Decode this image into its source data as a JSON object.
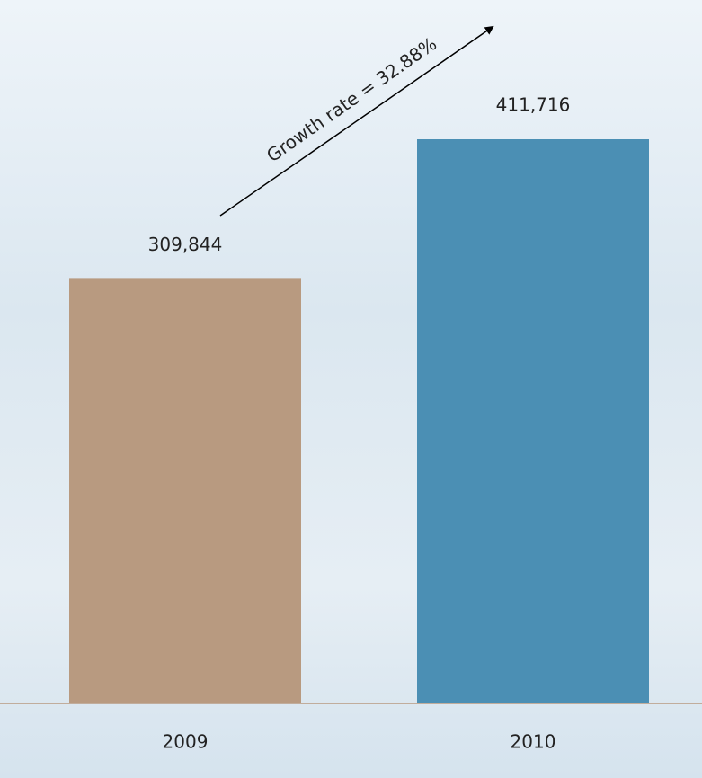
{
  "chart_data": {
    "type": "bar",
    "categories": [
      "2009",
      "2010"
    ],
    "values": [
      309844,
      411716
    ],
    "value_labels": [
      "309,844",
      "411,716"
    ],
    "colors": [
      "#b89a80",
      "#4b8fb4"
    ],
    "annotation": "Growth rate = 32.88%"
  }
}
